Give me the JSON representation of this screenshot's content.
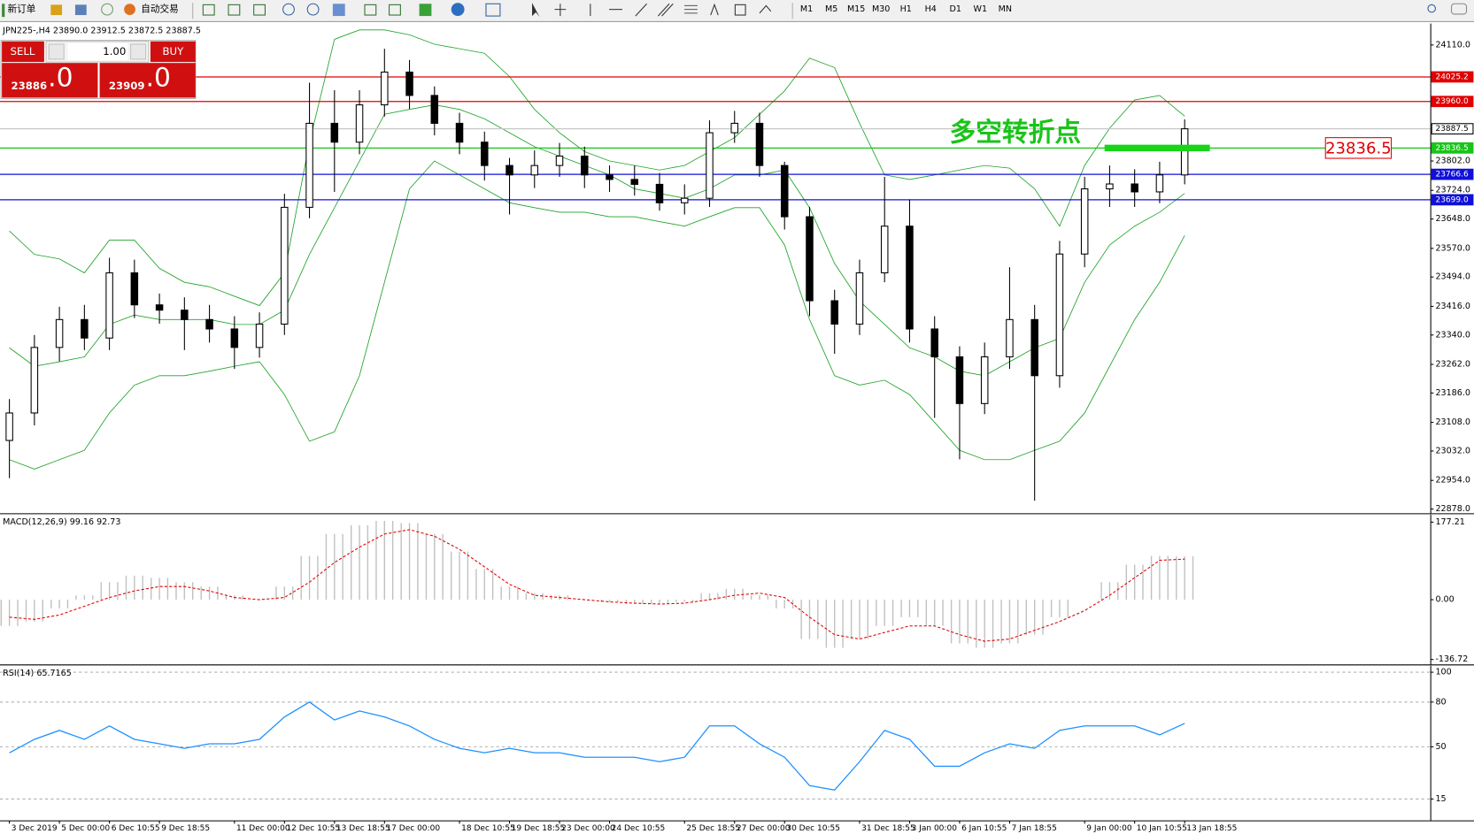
{
  "toolbar": {
    "new_order": "新订单",
    "auto_trading": "自动交易",
    "timeframes": [
      "M1",
      "M5",
      "M15",
      "M30",
      "H1",
      "H4",
      "D1",
      "W1",
      "MN"
    ]
  },
  "trade_panel": {
    "sell": "SELL",
    "buy": "BUY",
    "volume": "1.00",
    "sell_price": "23886",
    "sell_price_frac": ".0",
    "buy_price": "23909",
    "buy_price_frac": ".0"
  },
  "chart_data": [
    {
      "type": "candlestick",
      "title": "JPN225-,H4  23890.0 23912.5 23872.5 23887.5",
      "categories": [
        "3 Dec 2019",
        null,
        "5 Dec 00:00",
        null,
        "6 Dec 10:55",
        null,
        "9 Dec 18:55",
        null,
        null,
        "11 Dec 00:00",
        null,
        "12 Dec 10:55",
        null,
        "13 Dec 18:55",
        null,
        "17 Dec 00:00",
        null,
        null,
        "18 Dec 10:55",
        null,
        "19 Dec 18:55",
        null,
        "23 Dec 00:00",
        null,
        "24 Dec 10:55",
        null,
        null,
        "25 Dec 18:55",
        null,
        "27 Dec 00:00",
        null,
        "30 Dec 10:55",
        null,
        null,
        "31 Dec 18:55",
        null,
        "3 Jan 00:00",
        null,
        "6 Jan 10:55",
        null,
        "7 Jan 18:55",
        null,
        null,
        "9 Jan 00:00",
        null,
        "10 Jan 10:55",
        null,
        "13 Jan 18:55"
      ],
      "open": [
        23060,
        23133,
        23307,
        23381,
        23332,
        23505,
        23420,
        23406,
        23381,
        23356,
        23307,
        23369,
        23679,
        23902,
        23852,
        23951,
        24038,
        23976,
        23902,
        23852,
        23790,
        23765,
        23790,
        23815,
        23765,
        23753,
        23740,
        23691,
        23703,
        23877,
        23902,
        23790,
        23654,
        23431,
        23369,
        23505,
        23629,
        23356,
        23282,
        23158,
        23282,
        23381,
        23232,
        23555,
        23728,
        23741,
        23720,
        23765
      ],
      "high": [
        23170,
        23340,
        23415,
        23420,
        23545,
        23540,
        23450,
        23440,
        23420,
        23390,
        23400,
        23715,
        24010,
        23990,
        23990,
        24100,
        24070,
        24000,
        23930,
        23880,
        23810,
        23830,
        23850,
        23840,
        23790,
        23790,
        23770,
        23740,
        23910,
        23935,
        23930,
        23800,
        23680,
        23460,
        23540,
        23760,
        23700,
        23390,
        23310,
        23320,
        23520,
        23420,
        23590,
        23760,
        23790,
        23780,
        23800,
        23912.5
      ],
      "low": [
        22960,
        23100,
        23270,
        23300,
        23300,
        23385,
        23370,
        23300,
        23320,
        23250,
        23280,
        23340,
        23650,
        23720,
        23820,
        23920,
        23940,
        23870,
        23820,
        23750,
        23660,
        23730,
        23760,
        23730,
        23720,
        23710,
        23670,
        23660,
        23680,
        23850,
        23760,
        23620,
        23390,
        23290,
        23340,
        23480,
        23320,
        23120,
        23010,
        23130,
        23250,
        22900,
        23200,
        23520,
        23680,
        23680,
        23690,
        23740
      ],
      "close": [
        23133,
        23307,
        23381,
        23332,
        23505,
        23420,
        23406,
        23381,
        23356,
        23307,
        23369,
        23679,
        23902,
        23852,
        23951,
        24038,
        23976,
        23902,
        23852,
        23790,
        23765,
        23790,
        23815,
        23765,
        23753,
        23740,
        23691,
        23703,
        23877,
        23902,
        23790,
        23654,
        23431,
        23369,
        23505,
        23629,
        23356,
        23282,
        23158,
        23282,
        23381,
        23232,
        23555,
        23728,
        23741,
        23720,
        23765,
        23887.5
      ],
      "bands": {
        "color": "#1fa32a",
        "upper": [
          23616,
          23554,
          23542,
          23505,
          23592,
          23592,
          23517,
          23480,
          23468,
          23443,
          23418,
          23505,
          23852,
          24125,
          24150,
          24150,
          24137,
          24112,
          24100,
          24088,
          24026,
          23939,
          23877,
          23827,
          23802,
          23790,
          23778,
          23790,
          23827,
          23864,
          23926,
          23988,
          24075,
          24050,
          23902,
          23765,
          23753,
          23765,
          23778,
          23790,
          23783,
          23728,
          23629,
          23790,
          23889,
          23964,
          23976,
          23921
        ],
        "middle": [
          23306,
          23257,
          23269,
          23282,
          23368,
          23393,
          23381,
          23381,
          23381,
          23368,
          23368,
          23406,
          23554,
          23678,
          23802,
          23926,
          23939,
          23951,
          23939,
          23914,
          23877,
          23840,
          23815,
          23790,
          23765,
          23728,
          23716,
          23703,
          23728,
          23765,
          23765,
          23778,
          23678,
          23530,
          23430,
          23368,
          23306,
          23282,
          23244,
          23232,
          23269,
          23306,
          23331,
          23480,
          23579,
          23629,
          23666,
          23716
        ],
        "lower": [
          23009,
          22984,
          23009,
          23034,
          23133,
          23207,
          23232,
          23232,
          23244,
          23257,
          23269,
          23182,
          23058,
          23083,
          23232,
          23480,
          23728,
          23802,
          23765,
          23728,
          23691,
          23678,
          23666,
          23666,
          23654,
          23654,
          23641,
          23629,
          23654,
          23678,
          23678,
          23579,
          23381,
          23232,
          23207,
          23220,
          23182,
          23108,
          23034,
          23009,
          23009,
          23034,
          23058,
          23133,
          23257,
          23381,
          23480,
          23604
        ]
      },
      "levels": [
        {
          "value": 24025.2,
          "label": "24025.2",
          "color": "#e00000"
        },
        {
          "value": 23960.0,
          "label": "23960.0",
          "color": "#e00000"
        },
        {
          "value": 23887.5,
          "label": "23887.5",
          "color": "#c8c8c8"
        },
        {
          "value": 23836.5,
          "label": "23836.5",
          "color": "#19c419"
        },
        {
          "value": 23766.6,
          "label": "23766.6",
          "color": "#1010d8"
        },
        {
          "value": 23699.0,
          "label": "23699.0",
          "color": "#1010d8"
        }
      ],
      "annotation": "多空转折点",
      "callout": {
        "value": 23836.5,
        "label": "23836.5"
      },
      "ylim": [
        22868,
        24162
      ],
      "yticks": [
        {
          "value": 24110,
          "label": "24110.0"
        },
        {
          "value": 23802,
          "label": "23802.0"
        },
        {
          "value": 23724,
          "label": "23724.0"
        },
        {
          "value": 23648,
          "label": "23648.0"
        },
        {
          "value": 23570,
          "label": "23570.0"
        },
        {
          "value": 23494,
          "label": "23494.0"
        },
        {
          "value": 23416,
          "label": "23416.0"
        },
        {
          "value": 23340,
          "label": "23340.0"
        },
        {
          "value": 23262,
          "label": "23262.0"
        },
        {
          "value": 23186,
          "label": "23186.0"
        },
        {
          "value": 23108,
          "label": "23108.0"
        },
        {
          "value": 23032,
          "label": "23032.0"
        },
        {
          "value": 22954,
          "label": "22954.0"
        },
        {
          "value": 22878,
          "label": "22878.0"
        }
      ]
    },
    {
      "type": "macd",
      "title": "MACD(12,26,9) 99.16 92.73",
      "histogram": [
        -60,
        -50,
        -20,
        10,
        40,
        55,
        50,
        40,
        30,
        10,
        0,
        30,
        100,
        150,
        170,
        180,
        175,
        150,
        110,
        70,
        30,
        15,
        10,
        0,
        -5,
        -10,
        -10,
        -5,
        15,
        25,
        10,
        -20,
        -90,
        -110,
        -90,
        -60,
        -40,
        -60,
        -100,
        -110,
        -100,
        -80,
        -40,
        0,
        40,
        80,
        100,
        99.16
      ],
      "signal": [
        -40,
        -45,
        -35,
        -15,
        5,
        20,
        30,
        30,
        20,
        5,
        0,
        5,
        40,
        85,
        120,
        150,
        160,
        145,
        115,
        75,
        35,
        10,
        5,
        0,
        -5,
        -8,
        -10,
        -8,
        0,
        10,
        15,
        5,
        -40,
        -80,
        -90,
        -75,
        -60,
        -60,
        -80,
        -95,
        -90,
        -70,
        -50,
        -25,
        10,
        50,
        90,
        92.73
      ],
      "histogram_color": "#c0c0c0",
      "signal_color": "#e00000",
      "ylim": [
        -147,
        190
      ],
      "yticks": [
        177.21,
        {
          "value": 0,
          "label": "0.00"
        },
        -136.72
      ]
    },
    {
      "type": "line",
      "title": "RSI(14) 65.7165",
      "values": [
        46,
        55,
        61,
        55,
        64,
        55,
        52,
        49,
        52,
        52,
        55,
        70,
        80,
        68,
        74,
        70,
        64,
        55,
        49,
        46,
        49,
        46,
        46,
        43,
        43,
        43,
        40,
        43,
        64,
        64,
        52,
        43,
        24,
        21,
        40,
        61,
        55,
        37,
        37,
        46,
        52,
        49,
        61,
        64,
        64,
        64,
        58,
        65.7165
      ],
      "color": "#1e90ff",
      "ylim": [
        1,
        103
      ],
      "yticks": [
        100,
        80,
        50,
        15
      ]
    }
  ]
}
